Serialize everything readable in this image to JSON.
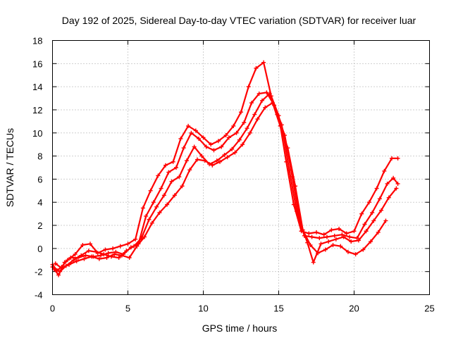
{
  "chart_data": {
    "type": "scatter",
    "title": "Day 192 of 2025, Sidereal Day-to-day VTEC variation (SDTVAR) for receiver luar",
    "xlabel": "GPS time / hours",
    "ylabel": "SDTVAR / TECUs",
    "xlim": [
      0,
      25
    ],
    "ylim": [
      -4,
      18
    ],
    "xticks": [
      "0",
      "5",
      "10",
      "15",
      "20",
      "25"
    ],
    "yticks": [
      "-4",
      "-2",
      "0",
      "2",
      "4",
      "6",
      "8",
      "10",
      "12",
      "14",
      "16",
      "18"
    ],
    "grid": true,
    "legend": "none",
    "marker": "plus",
    "color": "#ff0000",
    "series": [
      {
        "x": [
          0.0,
          0.3,
          0.6,
          1.0,
          1.5,
          2.0,
          2.5,
          3.0,
          3.5,
          4.0,
          4.5,
          5.0,
          5.5,
          6.0,
          6.5,
          7.0,
          7.5,
          8.0,
          8.5,
          9.0,
          9.5,
          10.0,
          10.5,
          11.0,
          11.5,
          12.0,
          12.5,
          13.0,
          13.5,
          14.0,
          14.5,
          15.0,
          15.5,
          16.0,
          16.5,
          17.0,
          17.5,
          18.0,
          18.5,
          19.0,
          19.5,
          20.0,
          20.5,
          21.0,
          21.5,
          22.0,
          22.5,
          22.9
        ],
        "y": [
          -1.4,
          -1.9,
          -1.6,
          -1.0,
          -0.5,
          0.3,
          0.4,
          -0.4,
          -0.1,
          0.0,
          0.2,
          0.4,
          0.8,
          3.5,
          5.0,
          6.3,
          7.2,
          7.5,
          9.5,
          10.6,
          10.2,
          9.6,
          9.0,
          9.3,
          9.8,
          10.6,
          11.8,
          14.0,
          15.6,
          16.1,
          13.2,
          11.5,
          7.5,
          3.8,
          1.5,
          1.3,
          1.4,
          1.2,
          1.6,
          1.7,
          1.3,
          1.5,
          3.0,
          4.0,
          5.2,
          6.7,
          7.8,
          7.8
        ]
      },
      {
        "x": [
          0.0,
          0.4,
          0.8,
          1.2,
          1.7,
          2.2,
          2.7,
          3.2,
          3.7,
          4.2,
          4.7,
          5.2,
          5.7,
          6.2,
          6.7,
          7.2,
          7.7,
          8.2,
          8.7,
          9.2,
          9.7,
          10.2,
          10.7,
          11.2,
          11.7,
          12.2,
          12.7,
          13.2,
          13.7,
          14.2,
          14.7,
          15.2,
          15.7,
          16.2,
          16.7,
          17.2,
          17.7,
          18.2,
          18.7,
          19.2,
          19.7,
          20.2,
          20.7,
          21.2,
          21.7,
          22.2,
          22.6,
          22.9
        ],
        "y": [
          -1.6,
          -2.3,
          -1.2,
          -0.8,
          -0.8,
          -0.6,
          -0.7,
          -0.6,
          -0.4,
          -0.3,
          -0.5,
          0.1,
          0.4,
          2.8,
          4.0,
          5.2,
          6.6,
          7.0,
          8.7,
          10.0,
          9.5,
          8.8,
          8.5,
          8.8,
          9.6,
          10.0,
          10.9,
          12.6,
          13.4,
          13.5,
          12.4,
          10.7,
          6.8,
          3.2,
          1.1,
          1.0,
          0.9,
          1.0,
          1.1,
          1.2,
          1.0,
          0.9,
          2.1,
          3.1,
          4.3,
          5.6,
          6.1,
          5.6
        ]
      },
      {
        "x": [
          0.1,
          0.5,
          0.9,
          1.4,
          1.9,
          2.4,
          2.9,
          3.4,
          3.9,
          4.4,
          4.9,
          5.4,
          5.9,
          6.4,
          6.9,
          7.4,
          7.9,
          8.4,
          8.9,
          9.4,
          9.9,
          10.4,
          10.9,
          11.4,
          11.9,
          12.4,
          12.9,
          13.4,
          13.9,
          14.4,
          14.9,
          15.4,
          15.9,
          16.4,
          16.9,
          17.3,
          17.8,
          18.3,
          18.8,
          19.3,
          19.8,
          20.3,
          20.8,
          21.3,
          21.8,
          22.3,
          22.8
        ],
        "y": [
          -1.8,
          -2.0,
          -1.5,
          -1.0,
          -0.6,
          -0.2,
          -0.3,
          -0.5,
          -0.7,
          -0.8,
          -0.2,
          0.2,
          0.9,
          2.5,
          3.6,
          4.6,
          5.8,
          6.2,
          7.6,
          8.8,
          8.0,
          7.3,
          7.6,
          8.1,
          8.6,
          9.4,
          10.4,
          11.6,
          12.8,
          13.4,
          11.6,
          9.8,
          6.2,
          2.4,
          0.5,
          -1.2,
          0.4,
          0.6,
          0.8,
          1.0,
          0.6,
          0.7,
          1.5,
          2.4,
          3.3,
          4.4,
          5.2
        ]
      },
      {
        "x": [
          0.2,
          0.6,
          1.1,
          1.6,
          2.1,
          2.6,
          3.1,
          3.6,
          4.1,
          4.6,
          5.1,
          5.6,
          6.1,
          6.6,
          7.1,
          7.6,
          8.1,
          8.6,
          9.1,
          9.6,
          10.1,
          10.6,
          11.1,
          11.6,
          12.1,
          12.6,
          13.1,
          13.6,
          14.1,
          14.6,
          15.1,
          15.6,
          16.1,
          16.6,
          17.1,
          17.6,
          18.1,
          18.6,
          19.1,
          19.6,
          20.1,
          20.6,
          21.1,
          21.6,
          22.1
        ],
        "y": [
          -1.3,
          -1.7,
          -1.4,
          -1.1,
          -0.9,
          -0.7,
          -0.9,
          -0.8,
          -0.5,
          -0.6,
          -0.8,
          0.2,
          1.0,
          2.2,
          3.1,
          3.8,
          4.6,
          5.4,
          6.8,
          7.7,
          7.6,
          7.2,
          7.5,
          7.9,
          8.3,
          9.0,
          10.0,
          11.2,
          12.2,
          12.6,
          10.6,
          8.7,
          5.4,
          1.6,
          0.3,
          -0.4,
          -0.1,
          0.3,
          0.2,
          -0.3,
          -0.5,
          -0.1,
          0.6,
          1.4,
          2.4
        ]
      }
    ]
  }
}
